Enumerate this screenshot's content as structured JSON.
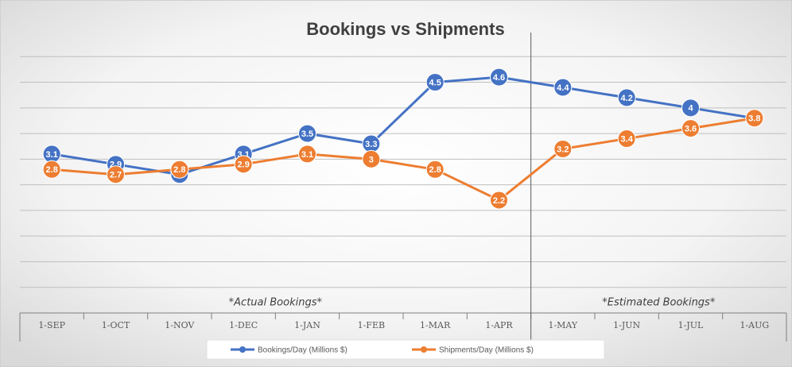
{
  "chart_data": {
    "type": "line",
    "title": "Bookings vs Shipments",
    "categories": [
      "1-SEP",
      "1-OCT",
      "1-NOV",
      "1-DEC",
      "1-JAN",
      "1-FEB",
      "1-MAR",
      "1-APR",
      "1-MAY",
      "1-JUN",
      "1-JUL",
      "1-AUG"
    ],
    "category_groups": [
      {
        "label": "*Actual Bookings*",
        "span": 8
      },
      {
        "label": "*Estimated Bookings*",
        "span": 4
      }
    ],
    "series": [
      {
        "name": "Bookings/Day (Millions $)",
        "color": "#4472c4",
        "values": [
          3.1,
          2.9,
          2.7,
          3.1,
          3.5,
          3.3,
          4.5,
          4.6,
          4.4,
          4.2,
          4,
          3.8
        ]
      },
      {
        "name": "Shipments/Day (Millions $)",
        "color": "#ed7d31",
        "values": [
          2.8,
          2.7,
          2.8,
          2.9,
          3.1,
          3,
          2.8,
          2.2,
          3.2,
          3.4,
          3.6,
          3.8
        ]
      }
    ],
    "ylim": [
      0,
      5.5
    ],
    "yticks": [
      0,
      0.5,
      1,
      1.5,
      2,
      2.5,
      3,
      3.5,
      4,
      4.5,
      5
    ],
    "grid": true,
    "legend": "bottom",
    "data_labels": true
  }
}
